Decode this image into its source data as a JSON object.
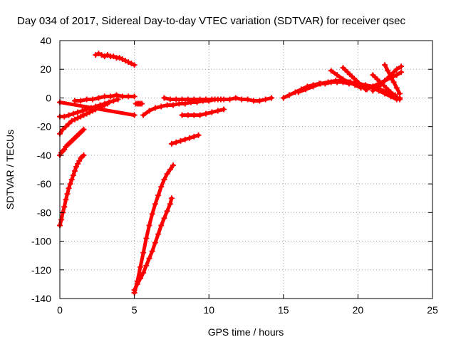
{
  "chart_data": {
    "type": "scatter",
    "title": "Day 034 of 2017, Sidereal Day-to-day VTEC variation (SDTVAR) for receiver qsec",
    "xlabel": "GPS time / hours",
    "ylabel": "SDTVAR / TECUs",
    "xlim": [
      0,
      25
    ],
    "ylim": [
      -140,
      40
    ],
    "xticks": [
      0,
      5,
      10,
      15,
      20,
      25
    ],
    "yticks": [
      -140,
      -120,
      -100,
      -80,
      -60,
      -40,
      -20,
      0,
      20,
      40
    ],
    "grid": true,
    "marker": "plus",
    "color": "#ff0000",
    "series": [
      {
        "x": [
          0.0,
          0.1,
          0.2,
          0.3,
          0.4,
          0.5,
          0.6,
          0.7,
          0.8,
          0.9,
          1.0,
          1.1,
          1.2,
          1.3,
          1.4,
          1.5,
          1.6
        ],
        "y": [
          -89,
          -85,
          -80,
          -76,
          -71,
          -67,
          -63,
          -60,
          -57,
          -54,
          -51,
          -48,
          -46,
          -44,
          -42,
          -41,
          -40
        ]
      },
      {
        "x": [
          0.0,
          0.1,
          0.2,
          0.3,
          0.4,
          0.5,
          0.6,
          0.7,
          0.8,
          0.9,
          1.0,
          1.1,
          1.2,
          1.3,
          1.4,
          1.5,
          1.6
        ],
        "y": [
          -40,
          -38,
          -37,
          -36,
          -34,
          -33,
          -32,
          -31,
          -30,
          -29,
          -28,
          -27,
          -26,
          -25,
          -24,
          -23,
          -22
        ]
      },
      {
        "x": [
          0.0,
          0.2,
          0.4,
          0.6,
          0.8,
          1.0,
          1.2,
          1.4,
          1.6,
          1.8,
          2.0,
          2.2,
          2.4,
          2.6,
          2.8,
          3.0,
          3.2
        ],
        "y": [
          -25,
          -22,
          -20,
          -18,
          -16,
          -15,
          -14,
          -13,
          -12,
          -11,
          -10,
          -9,
          -8,
          -7,
          -6,
          -5,
          -4
        ]
      },
      {
        "x": [
          0.0,
          0.3,
          0.6,
          0.9,
          1.2,
          1.5,
          1.8,
          2.1,
          2.4,
          2.7,
          3.0,
          3.3,
          3.6,
          3.9
        ],
        "y": [
          -13,
          -13,
          -12,
          -11,
          -10,
          -9,
          -8,
          -7,
          -6,
          -5,
          -4,
          -3,
          -2,
          -1
        ]
      },
      {
        "x": [
          1.0,
          1.4,
          1.8,
          2.2,
          2.6,
          3.0,
          3.4,
          3.8,
          4.2,
          4.6,
          5.0
        ],
        "y": [
          -2,
          -2,
          -1,
          -1,
          0,
          1,
          1,
          2,
          1,
          1,
          1
        ]
      },
      {
        "x": [
          2.4,
          2.6,
          2.8,
          3.0,
          3.2,
          3.4,
          3.6,
          3.8,
          4.0,
          4.2,
          4.4,
          4.6,
          4.8,
          5.0
        ],
        "y": [
          30,
          31,
          30,
          29,
          30,
          29,
          29,
          28,
          28,
          27,
          26,
          25,
          24,
          23
        ]
      },
      {
        "x": [
          0.0,
          5.0
        ],
        "y": [
          -3,
          -12
        ]
      },
      {
        "x": [
          5.1,
          5.2,
          5.3,
          5.4,
          5.5
        ],
        "y": [
          -4,
          -4,
          -4,
          -4,
          -4
        ]
      },
      {
        "x": [
          5.0,
          5.2,
          5.4,
          5.6,
          5.8,
          6.0,
          6.2,
          6.4,
          6.6,
          6.8,
          7.0,
          7.2,
          7.4,
          7.6
        ],
        "y": [
          -136,
          -128,
          -118,
          -108,
          -98,
          -89,
          -81,
          -74,
          -68,
          -62,
          -57,
          -53,
          -50,
          -47
        ]
      },
      {
        "x": [
          5.0,
          5.2,
          5.4,
          5.6,
          5.8,
          6.0,
          6.2,
          6.4,
          6.6,
          6.8,
          7.0,
          7.2,
          7.4,
          7.5
        ],
        "y": [
          -134,
          -130,
          -126,
          -122,
          -117,
          -112,
          -107,
          -101,
          -95,
          -89,
          -84,
          -79,
          -74,
          -70
        ]
      },
      {
        "x": [
          5.6,
          6.0,
          6.4,
          6.8,
          7.2,
          7.6,
          8.0,
          8.4,
          8.8,
          9.2,
          9.6,
          10.0,
          10.4,
          10.8
        ],
        "y": [
          -12,
          -9,
          -7,
          -6,
          -5,
          -5,
          -4,
          -4,
          -3,
          -3,
          -2,
          -2,
          -1,
          -1
        ]
      },
      {
        "x": [
          7.0,
          7.4,
          7.8,
          8.2,
          8.6,
          9.0,
          9.4,
          9.8,
          10.2,
          10.6,
          11.0,
          11.4,
          11.8,
          12.2,
          12.6,
          13.0,
          13.4,
          13.8,
          14.2
        ],
        "y": [
          0,
          -1,
          -1,
          -1,
          -1,
          -1,
          -1,
          -1,
          -1,
          -1,
          -1,
          -1,
          0,
          -1,
          -1,
          -2,
          -2,
          -1,
          0
        ]
      },
      {
        "x": [
          7.5,
          7.8,
          8.1,
          8.4,
          8.7,
          9.0,
          9.3
        ],
        "y": [
          -32,
          -31,
          -30,
          -29,
          -28,
          -27,
          -26
        ]
      },
      {
        "x": [
          8.2,
          8.6,
          9.0,
          9.4,
          9.8,
          10.2,
          10.6,
          11.0
        ],
        "y": [
          -12,
          -12,
          -12,
          -12,
          -11,
          -10,
          -9,
          -8
        ]
      },
      {
        "x": [
          15.0,
          15.4,
          15.8,
          16.2,
          16.6,
          17.0,
          17.4,
          17.8,
          18.2,
          18.6,
          19.0,
          19.4,
          19.8,
          20.2,
          20.6,
          21.0,
          21.4,
          21.8,
          22.2,
          22.6,
          22.8
        ],
        "y": [
          0,
          2,
          4,
          6,
          8,
          9,
          10,
          10,
          11,
          11,
          11,
          10,
          10,
          9,
          8,
          7,
          5,
          3,
          1,
          -1,
          0
        ]
      },
      {
        "x": [
          16.0,
          16.5,
          17.0,
          17.5,
          18.0,
          18.5,
          19.0,
          19.5,
          20.0,
          20.5,
          21.0,
          21.5,
          22.0,
          22.5
        ],
        "y": [
          4,
          6,
          8,
          10,
          11,
          12,
          12,
          11,
          10,
          9,
          8,
          6,
          4,
          2
        ]
      },
      {
        "x": [
          18.2,
          18.6,
          19.0,
          19.4,
          19.8,
          20.2
        ],
        "y": [
          19,
          16,
          13,
          11,
          9,
          7
        ]
      },
      {
        "x": [
          19.0,
          19.3,
          19.6,
          19.9,
          20.2,
          20.5
        ],
        "y": [
          21,
          18,
          15,
          12,
          9,
          6
        ]
      },
      {
        "x": [
          20.6,
          21.0,
          21.4,
          21.8,
          22.2,
          22.6,
          22.9
        ],
        "y": [
          6,
          8,
          10,
          12,
          14,
          16,
          18
        ]
      },
      {
        "x": [
          21.0,
          21.3,
          21.6,
          21.9,
          22.2,
          22.5,
          22.8
        ],
        "y": [
          16,
          13,
          10,
          7,
          4,
          1,
          -1
        ]
      },
      {
        "x": [
          21.8,
          22.0,
          22.2,
          22.4,
          22.6,
          22.8
        ],
        "y": [
          23,
          19,
          15,
          11,
          7,
          3
        ]
      },
      {
        "x": [
          21.0,
          21.4,
          21.8,
          22.2,
          22.6,
          22.9
        ],
        "y": [
          5,
          8,
          12,
          16,
          20,
          22
        ]
      }
    ]
  }
}
